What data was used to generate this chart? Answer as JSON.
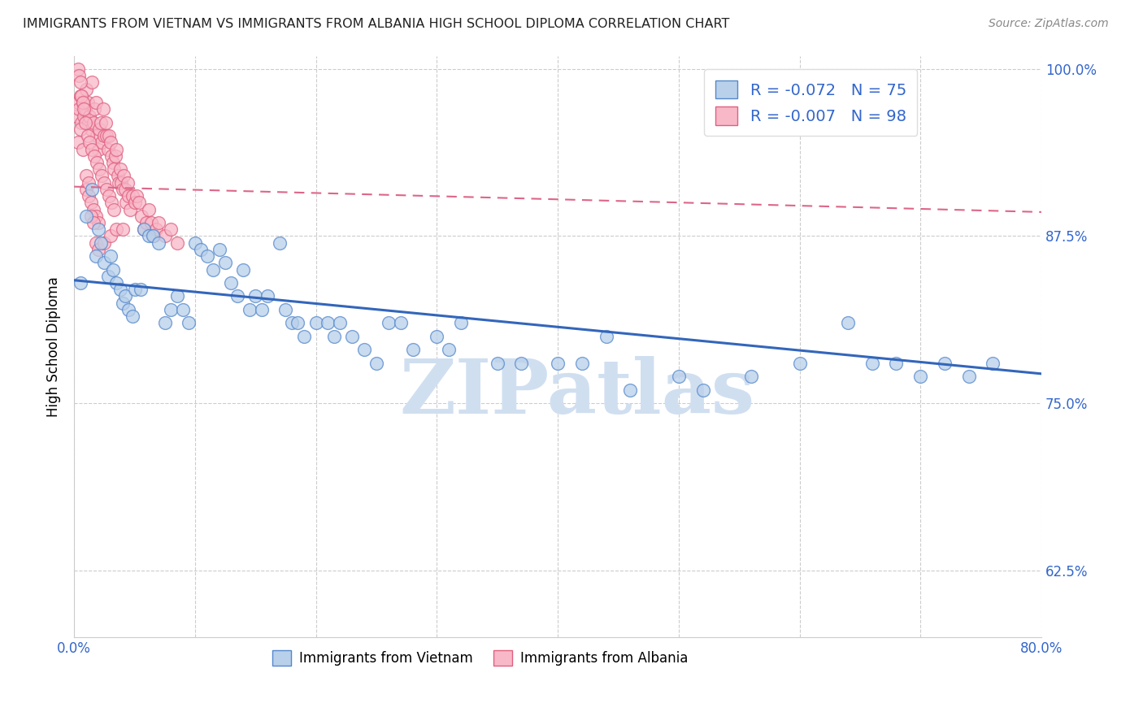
{
  "title": "IMMIGRANTS FROM VIETNAM VS IMMIGRANTS FROM ALBANIA HIGH SCHOOL DIPLOMA CORRELATION CHART",
  "source": "Source: ZipAtlas.com",
  "ylabel": "High School Diploma",
  "xlim": [
    0.0,
    0.8
  ],
  "ylim": [
    0.575,
    1.01
  ],
  "xticks": [
    0.0,
    0.1,
    0.2,
    0.3,
    0.4,
    0.5,
    0.6,
    0.7,
    0.8
  ],
  "ytick_positions": [
    0.625,
    0.75,
    0.875,
    1.0
  ],
  "ytick_labels": [
    "62.5%",
    "75.0%",
    "87.5%",
    "100.0%"
  ],
  "legend_R_vietnam": "-0.072",
  "legend_N_vietnam": "75",
  "legend_R_albania": "-0.007",
  "legend_N_albania": "98",
  "color_vietnam_face": "#b8d0ea",
  "color_vietnam_edge": "#5588cc",
  "color_albania_face": "#f8b8c8",
  "color_albania_edge": "#e06080",
  "trendline_vietnam_color": "#3366bb",
  "trendline_albania_color": "#dd6688",
  "watermark": "ZIPatlas",
  "watermark_color": "#d0dff0",
  "vietnam_x": [
    0.005,
    0.01,
    0.015,
    0.018,
    0.02,
    0.022,
    0.025,
    0.028,
    0.03,
    0.032,
    0.035,
    0.038,
    0.04,
    0.042,
    0.045,
    0.048,
    0.05,
    0.055,
    0.058,
    0.062,
    0.065,
    0.07,
    0.075,
    0.08,
    0.085,
    0.09,
    0.095,
    0.1,
    0.105,
    0.11,
    0.115,
    0.12,
    0.125,
    0.13,
    0.135,
    0.14,
    0.145,
    0.15,
    0.155,
    0.16,
    0.17,
    0.175,
    0.18,
    0.185,
    0.19,
    0.2,
    0.21,
    0.215,
    0.22,
    0.23,
    0.24,
    0.25,
    0.26,
    0.27,
    0.28,
    0.3,
    0.31,
    0.32,
    0.35,
    0.37,
    0.4,
    0.42,
    0.44,
    0.46,
    0.5,
    0.52,
    0.56,
    0.6,
    0.64,
    0.66,
    0.68,
    0.7,
    0.72,
    0.74,
    0.76
  ],
  "vietnam_y": [
    0.84,
    0.89,
    0.91,
    0.86,
    0.88,
    0.87,
    0.855,
    0.845,
    0.86,
    0.85,
    0.84,
    0.835,
    0.825,
    0.83,
    0.82,
    0.815,
    0.835,
    0.835,
    0.88,
    0.875,
    0.875,
    0.87,
    0.81,
    0.82,
    0.83,
    0.82,
    0.81,
    0.87,
    0.865,
    0.86,
    0.85,
    0.865,
    0.855,
    0.84,
    0.83,
    0.85,
    0.82,
    0.83,
    0.82,
    0.83,
    0.87,
    0.82,
    0.81,
    0.81,
    0.8,
    0.81,
    0.81,
    0.8,
    0.81,
    0.8,
    0.79,
    0.78,
    0.81,
    0.81,
    0.79,
    0.8,
    0.79,
    0.81,
    0.78,
    0.78,
    0.78,
    0.78,
    0.8,
    0.76,
    0.77,
    0.76,
    0.77,
    0.78,
    0.81,
    0.78,
    0.78,
    0.77,
    0.78,
    0.77,
    0.78
  ],
  "albania_x": [
    0.002,
    0.003,
    0.004,
    0.005,
    0.006,
    0.007,
    0.008,
    0.009,
    0.01,
    0.011,
    0.012,
    0.013,
    0.014,
    0.015,
    0.016,
    0.017,
    0.018,
    0.019,
    0.02,
    0.021,
    0.022,
    0.023,
    0.024,
    0.025,
    0.026,
    0.027,
    0.028,
    0.029,
    0.03,
    0.031,
    0.032,
    0.033,
    0.034,
    0.035,
    0.036,
    0.037,
    0.038,
    0.039,
    0.04,
    0.041,
    0.042,
    0.043,
    0.044,
    0.045,
    0.046,
    0.048,
    0.05,
    0.052,
    0.054,
    0.056,
    0.058,
    0.06,
    0.062,
    0.064,
    0.066,
    0.068,
    0.07,
    0.075,
    0.08,
    0.085,
    0.003,
    0.005,
    0.007,
    0.009,
    0.011,
    0.013,
    0.015,
    0.017,
    0.019,
    0.021,
    0.023,
    0.025,
    0.027,
    0.029,
    0.031,
    0.033,
    0.01,
    0.012,
    0.014,
    0.016,
    0.018,
    0.02,
    0.003,
    0.004,
    0.005,
    0.006,
    0.007,
    0.008,
    0.01,
    0.012,
    0.014,
    0.016,
    0.018,
    0.02,
    0.025,
    0.03,
    0.035,
    0.04
  ],
  "albania_y": [
    0.965,
    0.975,
    0.97,
    0.98,
    0.96,
    0.975,
    0.965,
    0.97,
    0.985,
    0.975,
    0.96,
    0.965,
    0.955,
    0.99,
    0.96,
    0.97,
    0.975,
    0.95,
    0.94,
    0.955,
    0.96,
    0.945,
    0.97,
    0.95,
    0.96,
    0.95,
    0.94,
    0.95,
    0.945,
    0.935,
    0.93,
    0.925,
    0.935,
    0.94,
    0.92,
    0.915,
    0.925,
    0.915,
    0.91,
    0.92,
    0.91,
    0.9,
    0.915,
    0.905,
    0.895,
    0.905,
    0.9,
    0.905,
    0.9,
    0.89,
    0.88,
    0.885,
    0.895,
    0.885,
    0.875,
    0.88,
    0.885,
    0.875,
    0.88,
    0.87,
    0.945,
    0.955,
    0.94,
    0.96,
    0.95,
    0.945,
    0.94,
    0.935,
    0.93,
    0.925,
    0.92,
    0.915,
    0.91,
    0.905,
    0.9,
    0.895,
    0.91,
    0.905,
    0.9,
    0.895,
    0.89,
    0.885,
    1.0,
    0.995,
    0.99,
    0.98,
    0.975,
    0.97,
    0.92,
    0.915,
    0.89,
    0.885,
    0.87,
    0.865,
    0.87,
    0.875,
    0.88,
    0.88
  ],
  "viet_trend_x0": 0.0,
  "viet_trend_y0": 0.842,
  "viet_trend_x1": 0.8,
  "viet_trend_y1": 0.772,
  "alb_trend_x0": 0.0,
  "alb_trend_y0": 0.912,
  "alb_trend_x1": 0.8,
  "alb_trend_y1": 0.893
}
